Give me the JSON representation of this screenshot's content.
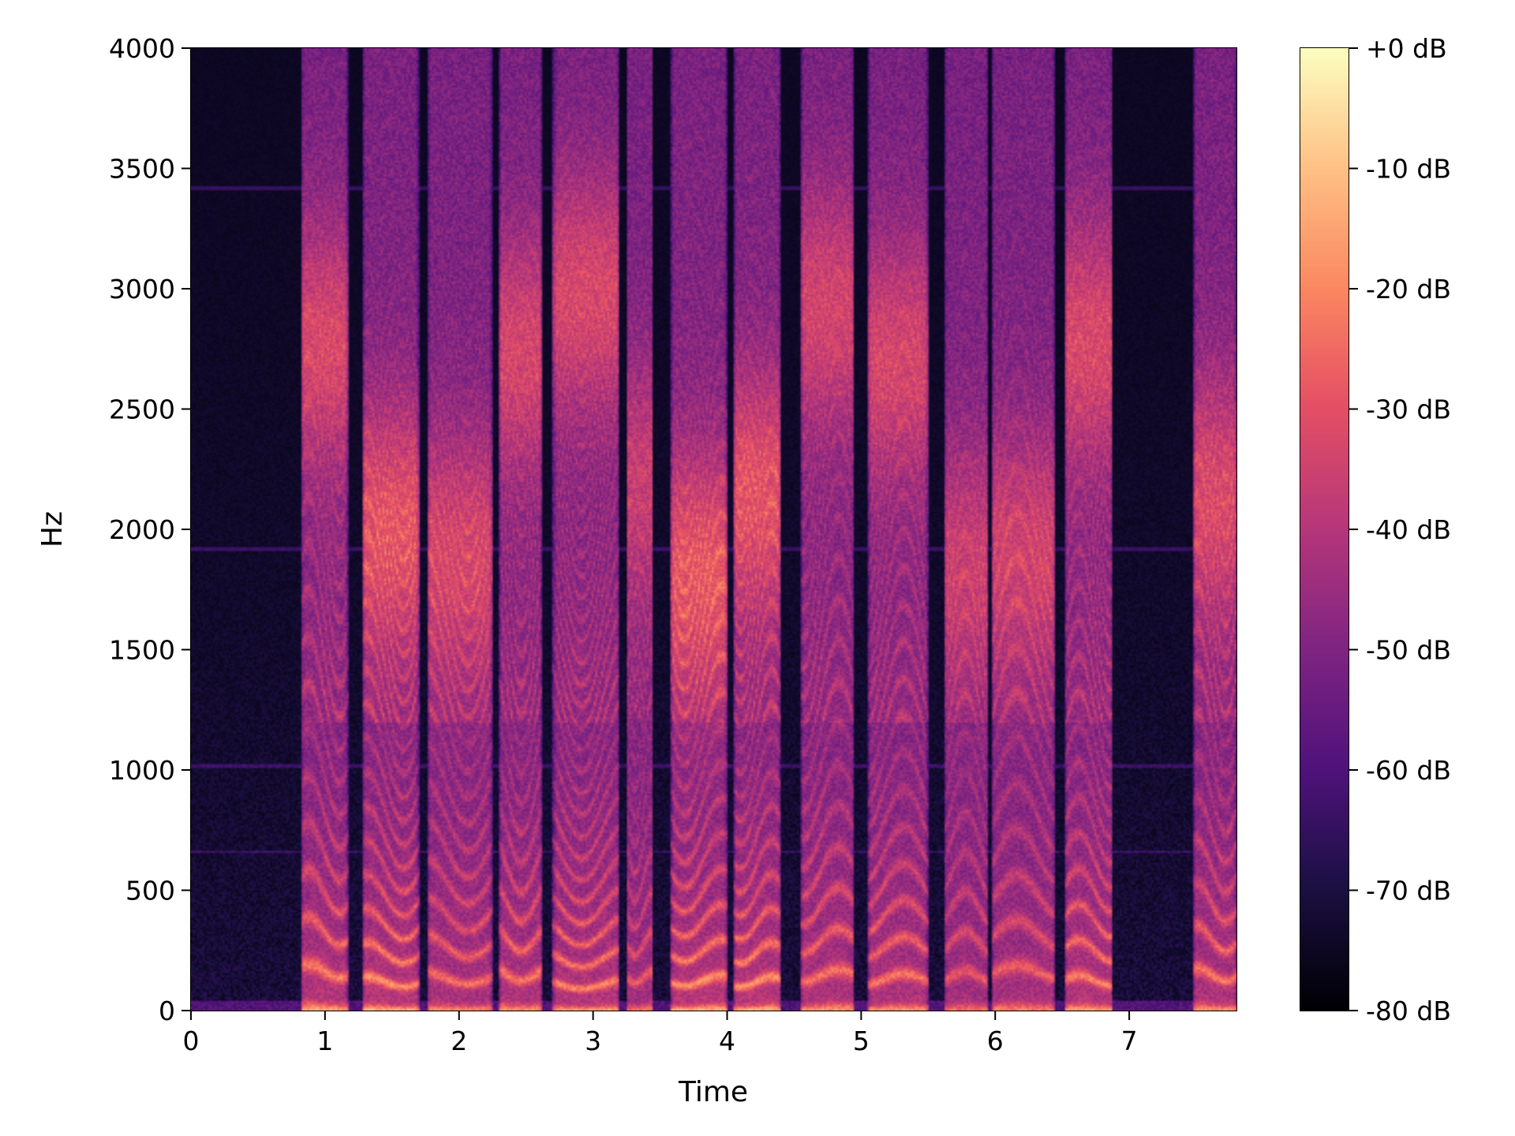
{
  "chart_data": {
    "type": "heatmap",
    "xlabel": "Time",
    "ylabel": "Hz",
    "xlim": [
      0,
      7.8
    ],
    "ylim": [
      0,
      4000
    ],
    "x_ticks": [
      "0",
      "1",
      "2",
      "3",
      "4",
      "5",
      "6",
      "7"
    ],
    "y_ticks": [
      "0",
      "500",
      "1000",
      "1500",
      "2000",
      "2500",
      "3000",
      "3500",
      "4000"
    ],
    "colorbar": {
      "range": [
        -80,
        0
      ],
      "ticks": [
        "+0 dB",
        "-10 dB",
        "-20 dB",
        "-30 dB",
        "-40 dB",
        "-50 dB",
        "-60 dB",
        "-70 dB",
        "-80 dB"
      ],
      "colormap": "magma"
    },
    "segments": [
      {
        "start": 0.82,
        "end": 1.17,
        "f0": 165,
        "strength": 0.85
      },
      {
        "start": 1.28,
        "end": 1.7,
        "f0": 120,
        "strength": 0.9
      },
      {
        "start": 1.76,
        "end": 2.25,
        "f0": 135,
        "strength": 0.75
      },
      {
        "start": 2.3,
        "end": 2.62,
        "f0": 150,
        "strength": 0.8
      },
      {
        "start": 2.7,
        "end": 3.2,
        "f0": 110,
        "strength": 0.85
      },
      {
        "start": 3.25,
        "end": 3.45,
        "f0": 140,
        "strength": 0.65
      },
      {
        "start": 3.58,
        "end": 4.0,
        "f0": 125,
        "strength": 0.9
      },
      {
        "start": 4.05,
        "end": 4.4,
        "f0": 120,
        "strength": 0.9
      },
      {
        "start": 4.55,
        "end": 4.95,
        "f0": 145,
        "strength": 0.8
      },
      {
        "start": 5.05,
        "end": 5.5,
        "f0": 130,
        "strength": 0.8
      },
      {
        "start": 5.62,
        "end": 5.95,
        "f0": 140,
        "strength": 0.65
      },
      {
        "start": 5.97,
        "end": 6.45,
        "f0": 160,
        "strength": 0.7
      },
      {
        "start": 6.52,
        "end": 6.88,
        "f0": 125,
        "strength": 0.85
      },
      {
        "start": 7.48,
        "end": 7.8,
        "f0": 150,
        "strength": 0.8
      }
    ],
    "hum_lines_hz": [
      660,
      1020,
      1920,
      3420
    ]
  }
}
